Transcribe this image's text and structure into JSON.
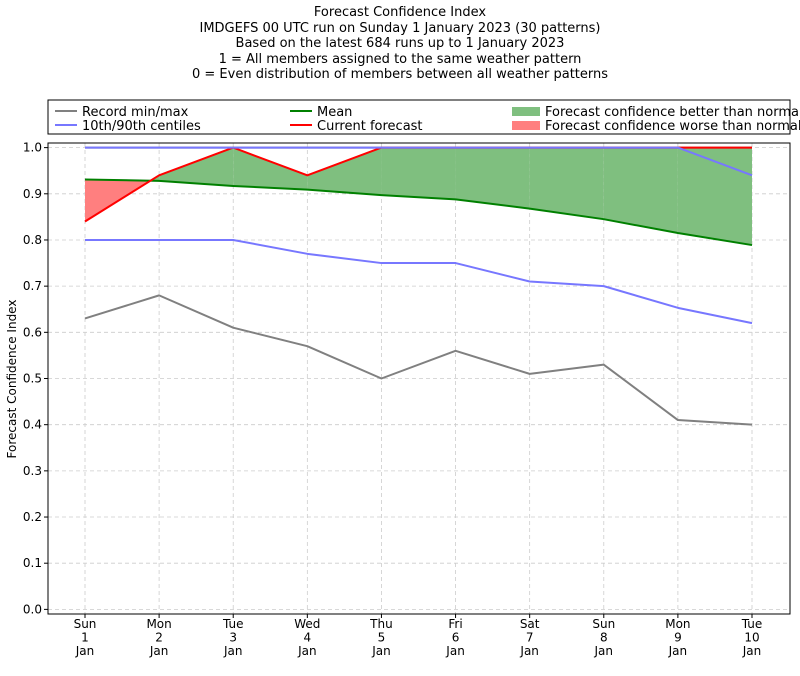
{
  "chart_data": {
    "type": "line",
    "title_lines": [
      "Forecast Confidence Index",
      "IMDGEFS 00 UTC run on Sunday 1 January 2023 (30 patterns)",
      "Based on the latest 684 runs up to 1 January 2023",
      "1 = All members assigned to the same weather pattern",
      "0 = Even distribution of members between all weather patterns"
    ],
    "ylabel": "Forecast Confidence Index",
    "xlabel": "",
    "ylim": [
      -0.01,
      1.01
    ],
    "yticks": [
      0.0,
      0.1,
      0.2,
      0.3,
      0.4,
      0.5,
      0.6,
      0.7,
      0.8,
      0.9,
      1.0
    ],
    "ytick_labels": [
      "0.0",
      "0.1",
      "0.2",
      "0.3",
      "0.4",
      "0.5",
      "0.6",
      "0.7",
      "0.8",
      "0.9",
      "1.0"
    ],
    "grid": true,
    "legend_placement": "top, above plot",
    "categories": [
      [
        "Sun",
        "1",
        "Jan"
      ],
      [
        "Mon",
        "2",
        "Jan"
      ],
      [
        "Tue",
        "3",
        "Jan"
      ],
      [
        "Wed",
        "4",
        "Jan"
      ],
      [
        "Thu",
        "5",
        "Jan"
      ],
      [
        "Fri",
        "6",
        "Jan"
      ],
      [
        "Sat",
        "7",
        "Jan"
      ],
      [
        "Sun",
        "8",
        "Jan"
      ],
      [
        "Mon",
        "9",
        "Jan"
      ],
      [
        "Tue",
        "10",
        "Jan"
      ]
    ],
    "series": [
      {
        "key": "record_max",
        "name": "Record min/max",
        "color": "#808080",
        "values": [
          1.0,
          1.0,
          1.0,
          1.0,
          1.0,
          1.0,
          1.0,
          1.0,
          1.0,
          1.0
        ]
      },
      {
        "key": "record_min",
        "name": "Record min/max",
        "color": "#808080",
        "values": [
          0.63,
          0.68,
          0.61,
          0.57,
          0.5,
          0.56,
          0.51,
          0.53,
          0.41,
          0.4
        ]
      },
      {
        "key": "p90",
        "name": "10th/90th centiles",
        "color": "#7777ff",
        "values": [
          1.0,
          1.0,
          1.0,
          1.0,
          1.0,
          1.0,
          1.0,
          1.0,
          1.0,
          0.94
        ]
      },
      {
        "key": "p10",
        "name": "10th/90th centiles",
        "color": "#7777ff",
        "values": [
          0.8,
          0.8,
          0.8,
          0.77,
          0.75,
          0.75,
          0.71,
          0.7,
          0.653,
          0.62
        ]
      },
      {
        "key": "mean",
        "name": "Mean",
        "color": "#008000",
        "values": [
          0.931,
          0.928,
          0.917,
          0.909,
          0.897,
          0.888,
          0.868,
          0.845,
          0.815,
          0.789
        ]
      },
      {
        "key": "current",
        "name": "Current forecast",
        "color": "#ff0000",
        "values": [
          0.84,
          0.94,
          1.0,
          0.94,
          1.0,
          1.0,
          1.0,
          1.0,
          1.0,
          1.0
        ]
      }
    ],
    "fills": [
      {
        "name": "Forecast confidence better than normal",
        "color": "#7fbf7f"
      },
      {
        "name": "Forecast confidence worse than normal",
        "color": "#ff7f7f"
      }
    ],
    "legend": [
      {
        "label": "Record min/max",
        "color": "#808080",
        "kind": "line"
      },
      {
        "label": "10th/90th centiles",
        "color": "#7777ff",
        "kind": "line"
      },
      {
        "label": "Mean",
        "color": "#008000",
        "kind": "line"
      },
      {
        "label": "Current forecast",
        "color": "#ff0000",
        "kind": "line"
      },
      {
        "label": "Forecast confidence better than normal",
        "color": "#7fbf7f",
        "kind": "patch"
      },
      {
        "label": "Forecast confidence worse than normal",
        "color": "#ff7f7f",
        "kind": "patch"
      }
    ]
  }
}
